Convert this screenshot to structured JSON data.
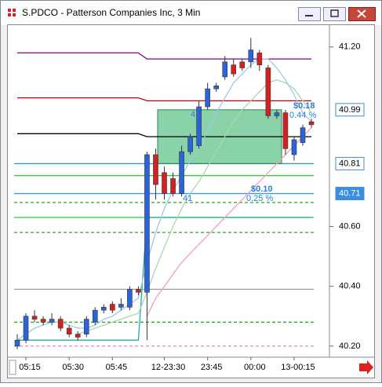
{
  "window": {
    "title": "S.PDCO - Patterson Companies Inc, 3 Min"
  },
  "chart_data": {
    "type": "candlestick",
    "categories": [
      null,
      "05:15",
      null,
      null,
      null,
      null,
      "05:30",
      null,
      null,
      null,
      null,
      "05:45",
      null,
      null,
      null,
      null,
      null,
      "12-23:30",
      null,
      null,
      null,
      null,
      "23:45",
      null,
      null,
      null,
      null,
      "00:00",
      null,
      null,
      null,
      null,
      "13-00:15",
      null,
      null
    ],
    "open": [
      40.2,
      40.22,
      40.3,
      40.29,
      40.28,
      40.29,
      40.26,
      40.24,
      40.24,
      40.28,
      40.32,
      40.34,
      40.33,
      40.33,
      40.39,
      40.38,
      40.84,
      40.78,
      40.76,
      40.71,
      40.85,
      40.87,
      41.0,
      41.06,
      41.1,
      41.14,
      41.15,
      41.15,
      41.18,
      41.13,
      40.97,
      40.98,
      40.84,
      40.88,
      40.95
    ],
    "high": [
      40.24,
      40.31,
      40.32,
      40.3,
      40.31,
      40.3,
      40.27,
      40.25,
      40.3,
      40.33,
      40.34,
      40.35,
      40.36,
      40.4,
      40.4,
      40.85,
      40.86,
      40.8,
      40.78,
      40.87,
      40.91,
      41.02,
      41.08,
      41.08,
      41.17,
      41.16,
      41.16,
      41.23,
      41.19,
      41.14,
      40.99,
      40.99,
      40.9,
      40.94,
      40.96
    ],
    "low": [
      40.19,
      40.21,
      40.28,
      40.27,
      40.27,
      40.25,
      40.23,
      40.22,
      40.23,
      40.27,
      40.31,
      40.31,
      40.32,
      40.32,
      40.37,
      40.22,
      40.69,
      40.69,
      40.7,
      40.7,
      40.84,
      40.86,
      40.99,
      41.05,
      41.09,
      41.1,
      41.12,
      41.13,
      41.12,
      40.96,
      40.96,
      40.84,
      40.82,
      40.87,
      40.93
    ],
    "close": [
      40.22,
      40.3,
      40.29,
      40.28,
      40.29,
      40.26,
      40.24,
      40.23,
      40.29,
      40.32,
      40.33,
      40.32,
      40.34,
      40.39,
      40.38,
      40.84,
      40.74,
      40.71,
      40.71,
      40.85,
      40.9,
      41.0,
      41.06,
      41.07,
      41.15,
      41.11,
      41.13,
      41.19,
      41.14,
      40.97,
      40.98,
      40.86,
      40.89,
      40.93,
      40.94
    ],
    "up_color": "#2b63d9",
    "down_color": "#d42020",
    "lines": [
      {
        "color": "#800080",
        "values": [
          41.18,
          41.18,
          41.18,
          41.18,
          41.18,
          41.18,
          41.18,
          41.18,
          41.18,
          41.18,
          41.18,
          41.18,
          41.18,
          41.18,
          41.18,
          41.16,
          41.16,
          41.16,
          41.16,
          41.16,
          41.16,
          41.16,
          41.16,
          41.16,
          41.16,
          41.16,
          41.16,
          41.16,
          41.16,
          41.16,
          41.16,
          41.16,
          41.16,
          41.16,
          41.16
        ]
      },
      {
        "color": "#cc0000",
        "values": [
          41.03,
          41.03,
          41.03,
          41.03,
          41.03,
          41.03,
          41.03,
          41.03,
          41.03,
          41.03,
          41.03,
          41.03,
          41.03,
          41.03,
          41.03,
          41.02,
          41.02,
          41.02,
          41.02,
          41.02,
          41.02,
          41.02,
          41.02,
          41.02,
          41.02,
          41.02,
          41.02,
          41.02,
          41.02,
          41.02,
          41.02,
          41.02,
          41.02,
          41.02,
          41.02
        ]
      },
      {
        "color": "#000000",
        "values": [
          40.91,
          40.91,
          40.91,
          40.91,
          40.91,
          40.91,
          40.91,
          40.91,
          40.91,
          40.91,
          40.91,
          40.91,
          40.91,
          40.91,
          40.91,
          40.9,
          40.9,
          40.9,
          40.9,
          40.9,
          40.9,
          40.9,
          40.9,
          40.9,
          40.9,
          40.9,
          40.9,
          40.9,
          40.9,
          40.9,
          40.9,
          40.9,
          40.9,
          40.9,
          40.9
        ]
      },
      {
        "color": "#20b0a0",
        "values": [
          40.22,
          40.22,
          40.22,
          40.22,
          40.22,
          40.22,
          40.22,
          40.22,
          40.22,
          40.22,
          40.22,
          40.22,
          40.22,
          40.22,
          40.22,
          40.63,
          40.63,
          40.63,
          40.63,
          40.63,
          40.63,
          40.63,
          40.63,
          40.63,
          40.63,
          40.63,
          40.63,
          40.63,
          40.63,
          40.63,
          40.63,
          40.63,
          40.63,
          40.63,
          40.63
        ]
      },
      {
        "color": "#9cc8ec",
        "values": [
          40.22,
          40.24,
          40.26,
          40.27,
          40.28,
          40.28,
          40.27,
          40.26,
          40.26,
          40.27,
          40.29,
          40.3,
          40.32,
          40.34,
          40.36,
          40.48,
          40.58,
          40.66,
          40.72,
          40.77,
          40.82,
          40.86,
          40.92,
          40.98,
          41.03,
          41.08,
          41.11,
          41.14,
          41.16,
          41.16,
          41.13,
          41.09,
          41.04,
          40.98,
          40.95
        ]
      },
      {
        "color": "#a8d8a8",
        "values": [
          null,
          null,
          null,
          null,
          null,
          null,
          null,
          40.24,
          40.25,
          40.26,
          40.27,
          40.28,
          40.29,
          40.3,
          40.31,
          40.38,
          40.46,
          40.53,
          40.6,
          40.66,
          40.71,
          40.75,
          40.8,
          40.85,
          40.9,
          40.95,
          40.99,
          41.02,
          41.05,
          41.08,
          41.09,
          41.08,
          41.06,
          41.02,
          40.98
        ]
      },
      {
        "color": "#f0a0b8",
        "values": [
          null,
          null,
          null,
          null,
          null,
          null,
          null,
          null,
          null,
          null,
          null,
          null,
          null,
          null,
          null,
          40.3,
          40.36,
          40.4,
          40.44,
          40.48,
          40.51,
          40.54,
          40.57,
          40.6,
          40.63,
          40.66,
          40.69,
          40.72,
          40.75,
          40.78,
          40.81,
          40.84,
          40.87,
          40.9,
          40.93
        ]
      }
    ],
    "hlines": [
      {
        "value": 40.81,
        "color": "#3399cc",
        "dash": false
      },
      {
        "value": 40.77,
        "color": "#33cc33",
        "dash": false
      },
      {
        "value": 40.71,
        "color": "#3399ff",
        "dash": false
      },
      {
        "value": 40.68,
        "color": "#22aa22",
        "dash": true
      },
      {
        "value": 40.63,
        "color": "#22cc44",
        "dash": false
      },
      {
        "value": 40.58,
        "color": "#22aa22",
        "dash": true
      },
      {
        "value": 40.39,
        "color": "#999999",
        "dash": false
      },
      {
        "value": 40.28,
        "color": "#22aa22",
        "dash": true
      },
      {
        "value": 40.2,
        "color": "#e080c0",
        "dash": true
      }
    ],
    "zone": {
      "low": 40.81,
      "high": 40.99,
      "color": "#3cb46e"
    },
    "price_markers": [
      {
        "value": 40.99,
        "filled": false
      },
      {
        "value": 40.81,
        "filled": false
      },
      {
        "value": 40.71,
        "filled": true
      }
    ],
    "annotations": [
      "$0.18",
      "0.44 %",
      "$0.10",
      "0.25 %",
      "4",
      "41"
    ],
    "ylim": [
      40.163,
      41.273
    ],
    "yticks": [
      {
        "value": 40.2,
        "label": "40.20"
      },
      {
        "value": 40.4,
        "label": "40.40"
      },
      {
        "value": 40.6,
        "label": "40.60"
      },
      {
        "value": 41.2,
        "label": "41.20"
      }
    ]
  }
}
